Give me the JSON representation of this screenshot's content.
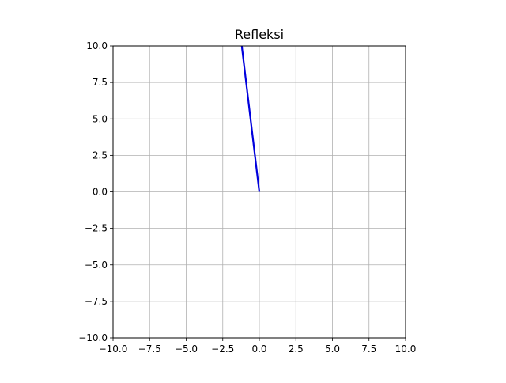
{
  "chart_data": {
    "type": "line",
    "title": "Refleksi",
    "xlabel": "",
    "ylabel": "",
    "xlim": [
      -10,
      10
    ],
    "ylim": [
      -10,
      10
    ],
    "grid": true,
    "legend": "none",
    "x_ticks": [
      -10,
      -7.5,
      -5,
      -2.5,
      0,
      2.5,
      5,
      7.5,
      10
    ],
    "y_ticks": [
      -10,
      -7.5,
      -5,
      -2.5,
      0,
      2.5,
      5,
      7.5,
      10
    ],
    "x_tick_labels": [
      "−10.0",
      "−7.5",
      "−5.0",
      "−2.5",
      "0.0",
      "2.5",
      "5.0",
      "7.5",
      "10.0"
    ],
    "y_tick_labels": [
      "−10.0",
      "−7.5",
      "−5.0",
      "−2.5",
      "0.0",
      "2.5",
      "5.0",
      "7.5",
      "10.0"
    ],
    "series": [
      {
        "x": [
          0,
          -1.2
        ],
        "y": [
          0,
          10
        ],
        "color": "#0000dd"
      }
    ]
  },
  "colors": {
    "grid": "#b0b0b0",
    "axes": "#000000",
    "background": "#ffffff"
  }
}
